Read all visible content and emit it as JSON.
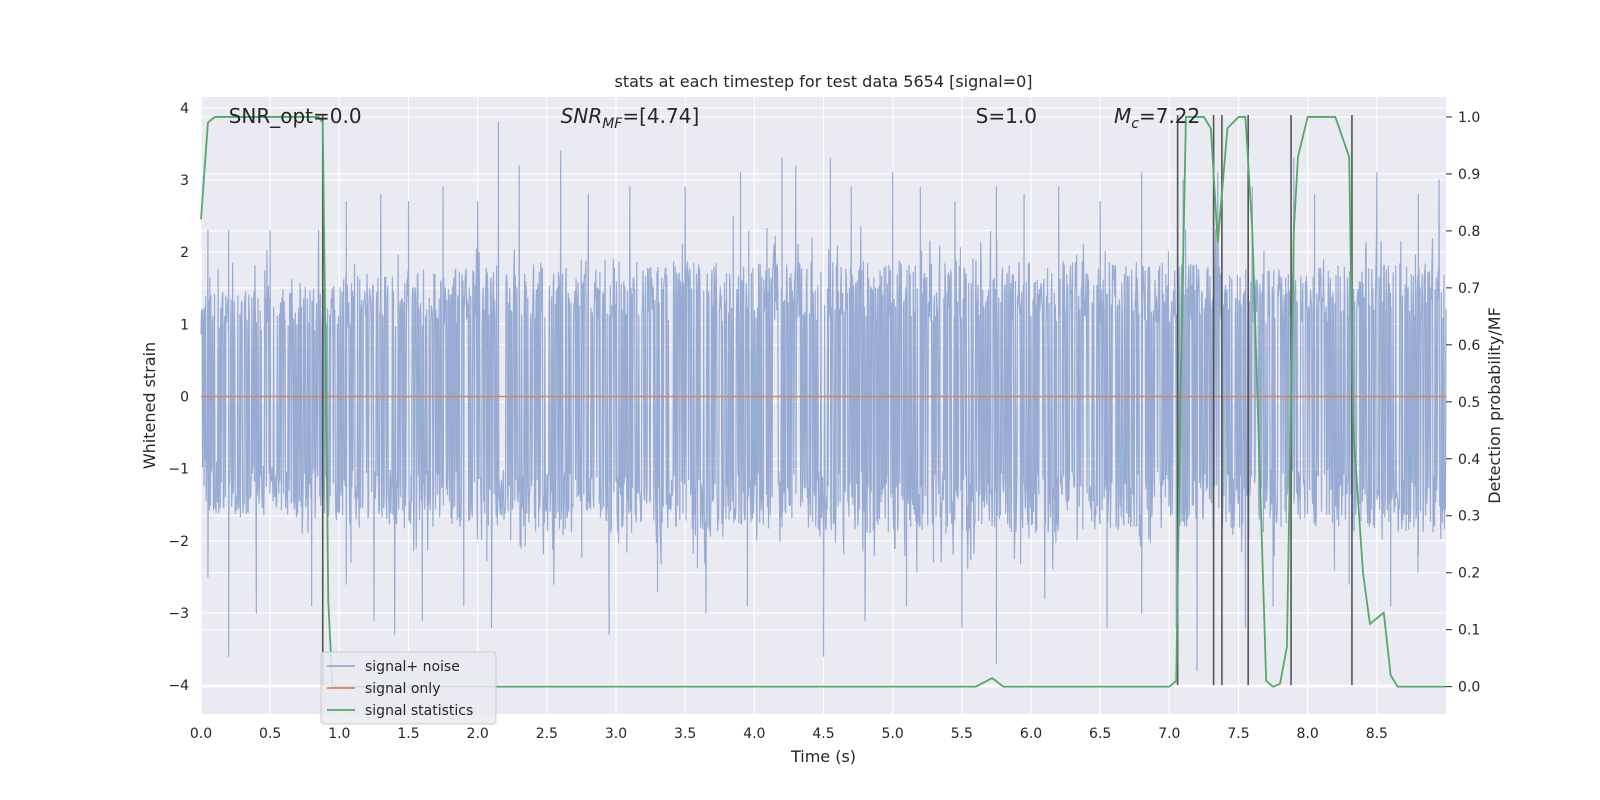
{
  "chart_data": {
    "type": "line",
    "title": "stats at each timestep for test data 5654 [signal=0]",
    "xlabel": "Time (s)",
    "ylabel": "Whitened strain",
    "y2label": "Detection probability/MF",
    "xlim": [
      0.0,
      9.0
    ],
    "ylim": [
      -4.4,
      4.15
    ],
    "y2lim": [
      -0.048,
      1.035
    ],
    "x_ticks": [
      "0.0",
      "0.5",
      "1.0",
      "1.5",
      "2.0",
      "2.5",
      "3.0",
      "3.5",
      "4.0",
      "4.5",
      "5.0",
      "5.5",
      "6.0",
      "6.5",
      "7.0",
      "7.5",
      "8.0",
      "8.5"
    ],
    "y_ticks": [
      "4",
      "3",
      "2",
      "1",
      "0",
      "−1",
      "−2",
      "−3",
      "−4"
    ],
    "y2_ticks": [
      "1.0",
      "0.9",
      "0.8",
      "0.7",
      "0.6",
      "0.5",
      "0.4",
      "0.3",
      "0.2",
      "0.1",
      "0.0"
    ],
    "grid": true,
    "legend_position": "lower-left",
    "annotations": [
      {
        "name": "snr-opt",
        "x": 0.2,
        "y": 3.9,
        "text": "SNR_opt=0.0"
      },
      {
        "name": "snr-mf",
        "x": 2.6,
        "y": 3.9,
        "text": "SNR_MF=[4.74]"
      },
      {
        "name": "s-value",
        "x": 5.6,
        "y": 3.9,
        "text": "S=1.0"
      },
      {
        "name": "mc-value",
        "x": 6.6,
        "y": 3.9,
        "text": "M_c=7.22"
      }
    ],
    "series": [
      {
        "name": "signal+ noise",
        "color": "#92a8d1",
        "axis": "left",
        "envelope_upper": [
          [
            0.0,
            1.5
          ],
          [
            0.9,
            1.6
          ],
          [
            1.0,
            1.7
          ],
          [
            2.0,
            1.8
          ],
          [
            3.0,
            1.9
          ],
          [
            4.0,
            1.85
          ],
          [
            5.0,
            1.9
          ],
          [
            6.0,
            1.9
          ],
          [
            7.0,
            1.85
          ],
          [
            8.0,
            1.8
          ],
          [
            9.0,
            1.9
          ]
        ],
        "envelope_lower": [
          [
            0.0,
            -1.6
          ],
          [
            0.9,
            -1.7
          ],
          [
            1.0,
            -1.8
          ],
          [
            2.0,
            -1.85
          ],
          [
            3.0,
            -1.9
          ],
          [
            4.0,
            -1.85
          ],
          [
            5.0,
            -1.9
          ],
          [
            6.0,
            -1.9
          ],
          [
            7.0,
            -1.85
          ],
          [
            8.0,
            -1.8
          ],
          [
            9.0,
            -1.9
          ]
        ],
        "upper_spikes": [
          [
            0.05,
            2.3
          ],
          [
            0.2,
            2.3
          ],
          [
            0.5,
            2.3
          ],
          [
            0.85,
            2.3
          ],
          [
            1.05,
            2.7
          ],
          [
            1.3,
            2.8
          ],
          [
            1.5,
            2.7
          ],
          [
            1.75,
            2.9
          ],
          [
            2.0,
            2.7
          ],
          [
            2.15,
            3.8
          ],
          [
            2.3,
            3.2
          ],
          [
            2.6,
            3.4
          ],
          [
            2.8,
            2.8
          ],
          [
            3.1,
            2.9
          ],
          [
            3.5,
            2.9
          ],
          [
            3.9,
            3.1
          ],
          [
            4.2,
            3.3
          ],
          [
            4.3,
            3.2
          ],
          [
            4.55,
            3.3
          ],
          [
            4.7,
            2.9
          ],
          [
            5.0,
            3.1
          ],
          [
            5.2,
            2.9
          ],
          [
            5.45,
            2.7
          ],
          [
            5.75,
            2.9
          ],
          [
            5.95,
            2.8
          ],
          [
            6.2,
            2.9
          ],
          [
            6.5,
            2.7
          ],
          [
            6.8,
            3.1
          ],
          [
            7.1,
            3.0
          ],
          [
            7.35,
            3.1
          ],
          [
            7.6,
            2.9
          ],
          [
            7.9,
            3.3
          ],
          [
            8.05,
            2.8
          ],
          [
            8.5,
            3.1
          ],
          [
            8.8,
            2.8
          ],
          [
            8.95,
            3.0
          ]
        ],
        "lower_spikes": [
          [
            0.05,
            -2.5
          ],
          [
            0.2,
            -3.6
          ],
          [
            0.4,
            -3.0
          ],
          [
            0.8,
            -2.9
          ],
          [
            1.05,
            -2.6
          ],
          [
            1.25,
            -3.1
          ],
          [
            1.4,
            -3.3
          ],
          [
            1.6,
            -3.1
          ],
          [
            1.9,
            -2.9
          ],
          [
            2.1,
            -3.2
          ],
          [
            2.55,
            -2.6
          ],
          [
            2.95,
            -3.3
          ],
          [
            3.3,
            -2.7
          ],
          [
            3.65,
            -3.0
          ],
          [
            3.95,
            -2.9
          ],
          [
            4.5,
            -3.6
          ],
          [
            4.8,
            -3.1
          ],
          [
            5.1,
            -2.9
          ],
          [
            5.5,
            -3.2
          ],
          [
            5.75,
            -3.7
          ],
          [
            6.1,
            -2.8
          ],
          [
            6.55,
            -3.2
          ],
          [
            6.8,
            -3.0
          ],
          [
            7.05,
            -3.2
          ],
          [
            7.2,
            -3.8
          ],
          [
            7.55,
            -3.2
          ],
          [
            7.75,
            -2.9
          ],
          [
            8.3,
            -2.6
          ],
          [
            8.6,
            -2.9
          ],
          [
            8.8,
            -2.2
          ]
        ]
      },
      {
        "name": "signal only",
        "color": "#dd8452",
        "axis": "left",
        "points": [
          [
            0.0,
            0.0
          ],
          [
            9.0,
            0.0
          ]
        ]
      },
      {
        "name": "signal statistics",
        "color": "#55a868",
        "axis": "right",
        "points": [
          [
            0.0,
            0.82
          ],
          [
            0.05,
            0.99
          ],
          [
            0.1,
            1.0
          ],
          [
            0.85,
            1.0
          ],
          [
            0.88,
            0.99
          ],
          [
            0.9,
            0.6
          ],
          [
            0.92,
            0.15
          ],
          [
            0.95,
            0.0
          ],
          [
            5.6,
            0.0
          ],
          [
            5.72,
            0.015
          ],
          [
            5.8,
            0.0
          ],
          [
            7.0,
            0.0
          ],
          [
            7.05,
            0.01
          ],
          [
            7.08,
            0.5
          ],
          [
            7.12,
            1.0
          ],
          [
            7.25,
            1.0
          ],
          [
            7.3,
            0.98
          ],
          [
            7.35,
            0.78
          ],
          [
            7.42,
            0.98
          ],
          [
            7.5,
            1.0
          ],
          [
            7.55,
            1.0
          ],
          [
            7.6,
            0.8
          ],
          [
            7.7,
            0.01
          ],
          [
            7.75,
            0.0
          ],
          [
            7.8,
            0.005
          ],
          [
            7.85,
            0.07
          ],
          [
            7.9,
            0.8
          ],
          [
            7.93,
            0.93
          ],
          [
            8.0,
            1.0
          ],
          [
            8.2,
            1.0
          ],
          [
            8.3,
            0.93
          ],
          [
            8.33,
            0.45
          ],
          [
            8.4,
            0.2
          ],
          [
            8.45,
            0.11
          ],
          [
            8.55,
            0.13
          ],
          [
            8.6,
            0.02
          ],
          [
            8.65,
            0.0
          ],
          [
            9.0,
            0.0
          ]
        ]
      }
    ],
    "vertical_markers": [
      {
        "x": 0.88,
        "y_top": 3.9,
        "y_bottom": -4.0
      },
      {
        "x": 7.06,
        "y_top": 3.9,
        "y_bottom": -4.0
      },
      {
        "x": 7.32,
        "y_top": 3.9,
        "y_bottom": -4.0
      },
      {
        "x": 7.38,
        "y_top": 3.9,
        "y_bottom": -4.0
      },
      {
        "x": 7.57,
        "y_top": 3.9,
        "y_bottom": -4.0
      },
      {
        "x": 7.88,
        "y_top": 3.9,
        "y_bottom": -4.0
      },
      {
        "x": 8.32,
        "y_top": 3.9,
        "y_bottom": -4.0
      }
    ],
    "colors": {
      "plot_background": "#eaeaf2",
      "grid": "#ffffff",
      "marker_lines": "#555555"
    }
  }
}
